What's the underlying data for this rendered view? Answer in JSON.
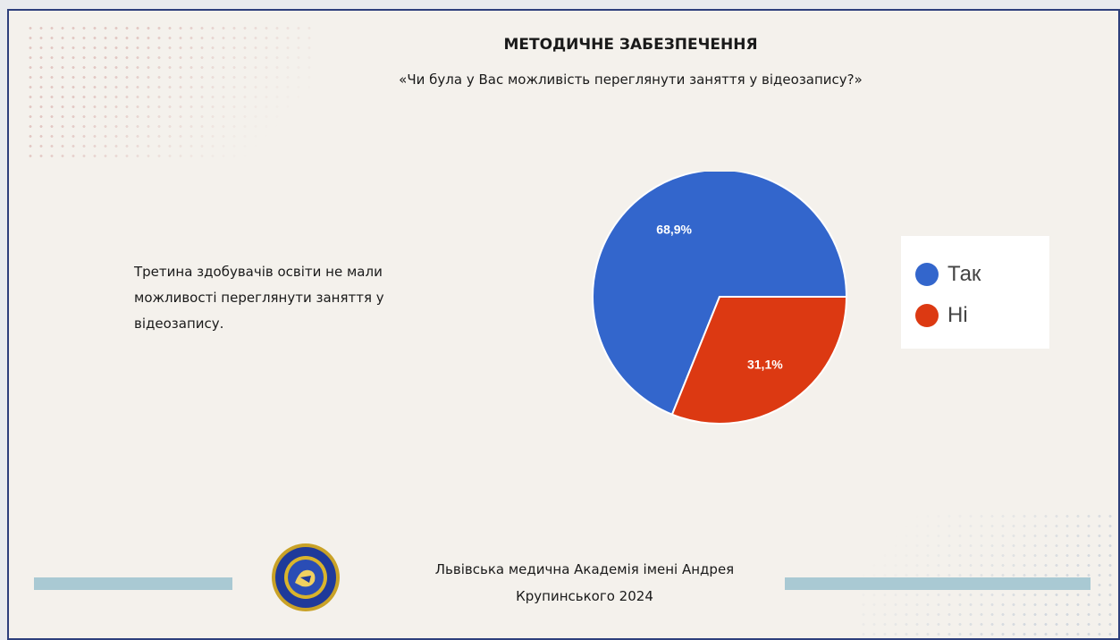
{
  "slide": {
    "title": "МЕТОДИЧНЕ ЗАБЕЗПЕЧЕННЯ",
    "subtitle": "«Чи була у Вас можливість переглянути заняття у відеозапису?»",
    "description": "Третина здобувачів освіти не мали можливості переглянути заняття у відеозапису.",
    "footer_line1": "Львівська медична Академія імені Андрея",
    "footer_line2": "Крупинського 2024"
  },
  "colors": {
    "tak": "#3366cc",
    "ni": "#dc3912",
    "accent_bar": "#a9c9d3",
    "border": "#2d3f7c"
  },
  "chart_data": {
    "type": "pie",
    "categories": [
      "Так",
      "Ні"
    ],
    "values": [
      68.9,
      31.1
    ],
    "labels": [
      "68,9%",
      "31,1%"
    ],
    "colors": [
      "#3366cc",
      "#dc3912"
    ],
    "legend_position": "right"
  },
  "logo": {
    "icon": "academy-seal-icon"
  }
}
